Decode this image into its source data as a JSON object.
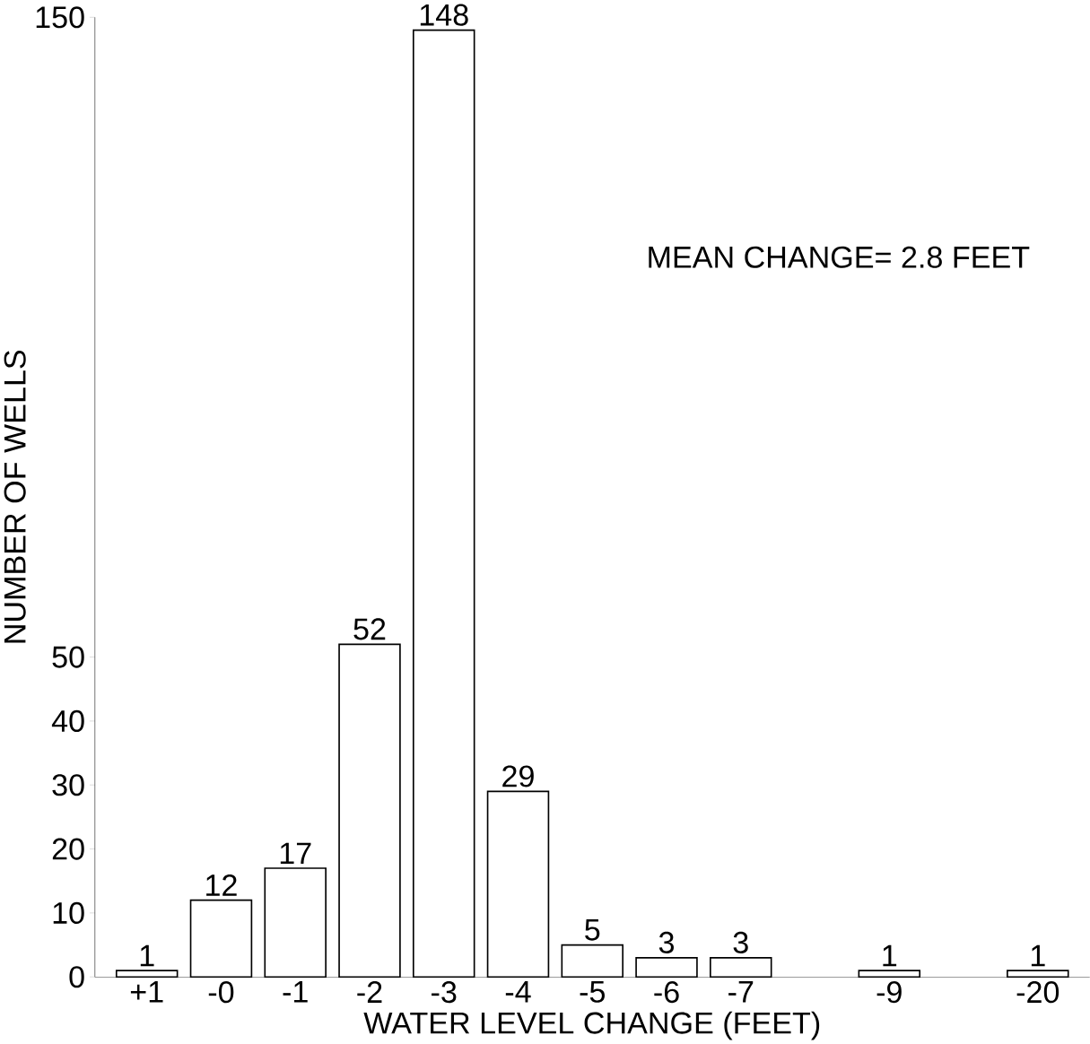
{
  "chart_data": {
    "type": "bar",
    "xlabel": "WATER LEVEL CHANGE (FEET)",
    "ylabel": "NUMBER OF WELLS",
    "categories": [
      "+1",
      "-0",
      "-1",
      "-2",
      "-3",
      "-4",
      "-5",
      "-6",
      "-7",
      null,
      "-9",
      null,
      "-20"
    ],
    "values": [
      1,
      12,
      17,
      52,
      148,
      29,
      5,
      3,
      3,
      null,
      1,
      null,
      1
    ],
    "color": "#ffffff",
    "ylim": [
      0,
      150
    ],
    "yticks": [
      0,
      10,
      20,
      30,
      40,
      50,
      150
    ],
    "data_labels": true,
    "grid": false,
    "annotations": [
      "MEAN CHANGE= 2.8 FEET"
    ]
  }
}
